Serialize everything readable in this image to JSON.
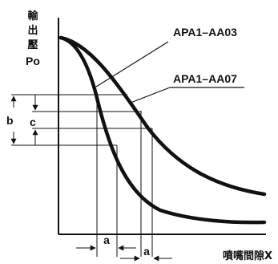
{
  "y_axis": {
    "label_lines": [
      "輸",
      "出",
      "壓",
      "Po"
    ]
  },
  "x_axis": {
    "label": "噴嘴間隙X"
  },
  "curves": [
    {
      "label": "APA1–AA03"
    },
    {
      "label": "APA1–AA07"
    }
  ],
  "dimensions": {
    "b": "b",
    "c": "c",
    "a1": "a",
    "a2": "a"
  }
}
